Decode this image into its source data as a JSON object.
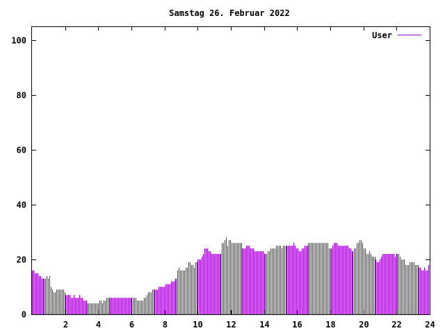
{
  "chart_data": {
    "type": "bar",
    "title": "Samstag 26. Februar 2022",
    "xlabel": "",
    "ylabel": "",
    "xlim": [
      0,
      24
    ],
    "ylim": [
      0,
      105
    ],
    "x_ticks": [
      2,
      4,
      6,
      8,
      10,
      12,
      14,
      16,
      18,
      20,
      22,
      24
    ],
    "y_ticks": [
      0,
      20,
      40,
      60,
      80,
      100
    ],
    "grid": false,
    "legend_position": "top-right",
    "series_color": "#9400d3",
    "series": [
      {
        "name": "User",
        "step_hours": 0.08333,
        "values": [
          16,
          16,
          15,
          15,
          15,
          14,
          14,
          13,
          13,
          13,
          13,
          14,
          13,
          14,
          10,
          9,
          8,
          8,
          9,
          9,
          9,
          9,
          9,
          9,
          8,
          7,
          7,
          7,
          7,
          6,
          6,
          7,
          6,
          6,
          6,
          7,
          6,
          6,
          5,
          5,
          5,
          4,
          4,
          4,
          4,
          4,
          4,
          4,
          4,
          4,
          5,
          5,
          4,
          5,
          5,
          6,
          6,
          6,
          6,
          6,
          6,
          6,
          6,
          6,
          6,
          6,
          6,
          6,
          6,
          6,
          6,
          6,
          6,
          6,
          6,
          6,
          6,
          6,
          5,
          5,
          5,
          5,
          5,
          6,
          6,
          7,
          8,
          8,
          8,
          9,
          9,
          9,
          9,
          9,
          10,
          10,
          10,
          10,
          10,
          11,
          11,
          11,
          11,
          12,
          12,
          12,
          13,
          13,
          16,
          17,
          16,
          16,
          16,
          16,
          17,
          17,
          19,
          19,
          18,
          18,
          17,
          19,
          19,
          20,
          20,
          20,
          21,
          22,
          24,
          24,
          24,
          23,
          23,
          22,
          22,
          22,
          22,
          22,
          22,
          22,
          22,
          26,
          26,
          27,
          28,
          25,
          27,
          27,
          26,
          26,
          26,
          26,
          26,
          26,
          26,
          26,
          24,
          24,
          24,
          25,
          25,
          25,
          24,
          24,
          24,
          23,
          23,
          23,
          23,
          23,
          23,
          23,
          22,
          22,
          22,
          23,
          23,
          24,
          24,
          24,
          24,
          25,
          25,
          25,
          25,
          24,
          25,
          25,
          25,
          25,
          25,
          25,
          25,
          25,
          26,
          25,
          24,
          24,
          23,
          23,
          24,
          24,
          25,
          25,
          25,
          26,
          26,
          26,
          26,
          26,
          26,
          26,
          26,
          26,
          26,
          26,
          26,
          26,
          26,
          26,
          24,
          24,
          24,
          25,
          26,
          26,
          26,
          25,
          25,
          25,
          25,
          25,
          25,
          25,
          25,
          24,
          24,
          23,
          23,
          24,
          24,
          26,
          26,
          27,
          27,
          26,
          24,
          24,
          22,
          22,
          23,
          22,
          21,
          21,
          21,
          20,
          19,
          19,
          20,
          21,
          22,
          22,
          22,
          22,
          22,
          22,
          22,
          22,
          22,
          21,
          22,
          22,
          22,
          21,
          20,
          20,
          20,
          18,
          18,
          18,
          19,
          19,
          19,
          19,
          18,
          18,
          18,
          17,
          17,
          16,
          16,
          17,
          16,
          16,
          18
        ]
      }
    ]
  }
}
